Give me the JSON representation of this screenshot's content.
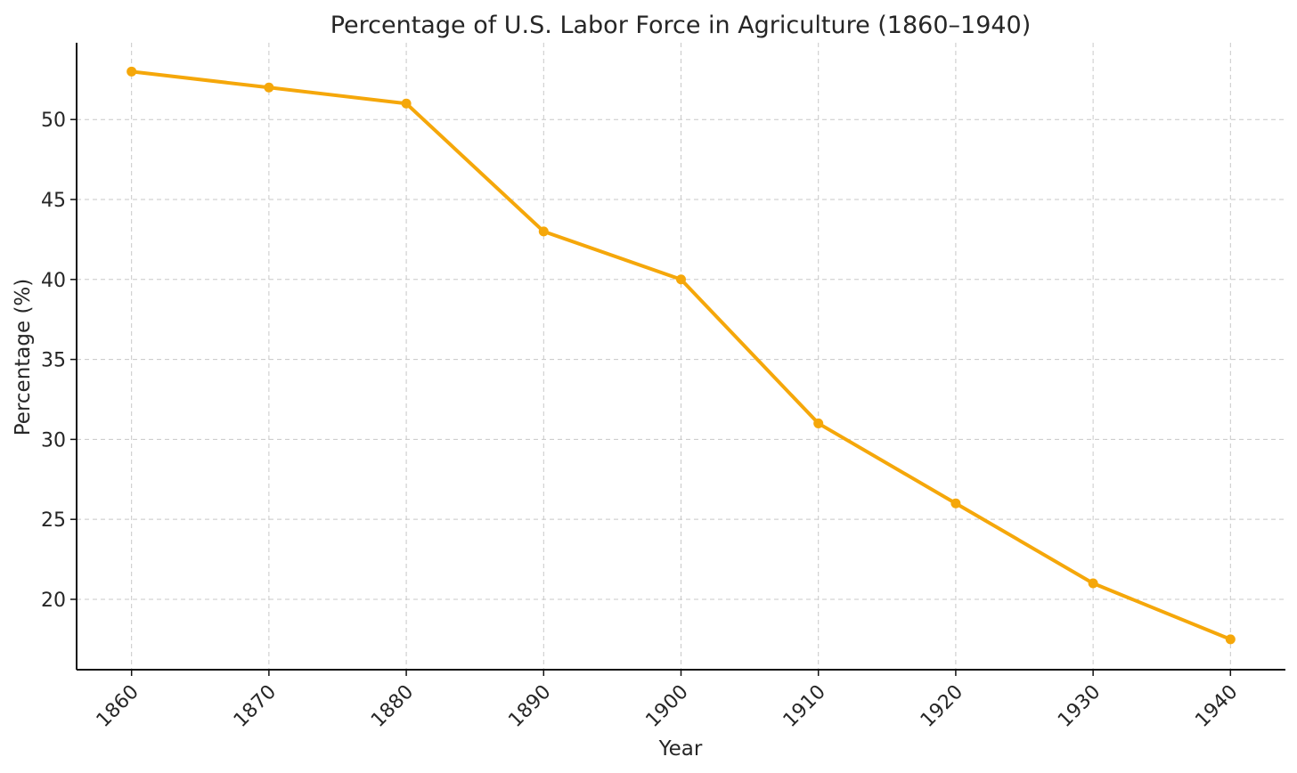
{
  "chart_data": {
    "type": "line",
    "title": "Percentage of U.S. Labor Force in Agriculture (1860–1940)",
    "xlabel": "Year",
    "ylabel": "Percentage (%)",
    "x": [
      1860,
      1870,
      1880,
      1890,
      1900,
      1910,
      1920,
      1930,
      1940
    ],
    "x_tick_labels": [
      "1860",
      "1870",
      "1880",
      "1890",
      "1900",
      "1910",
      "1920",
      "1930",
      "1940"
    ],
    "y_ticks": [
      20,
      25,
      30,
      35,
      40,
      45,
      50
    ],
    "y_tick_labels": [
      "20",
      "25",
      "30",
      "35",
      "40",
      "45",
      "50"
    ],
    "series": [
      {
        "values": [
          53,
          52,
          51,
          43,
          40,
          31,
          26,
          21,
          17.5
        ],
        "color": "#f5a70a",
        "marker": "circle"
      }
    ],
    "xlim": [
      1856,
      1944
    ],
    "ylim": [
      15.6,
      54.8
    ],
    "grid": true,
    "legend": "none"
  }
}
